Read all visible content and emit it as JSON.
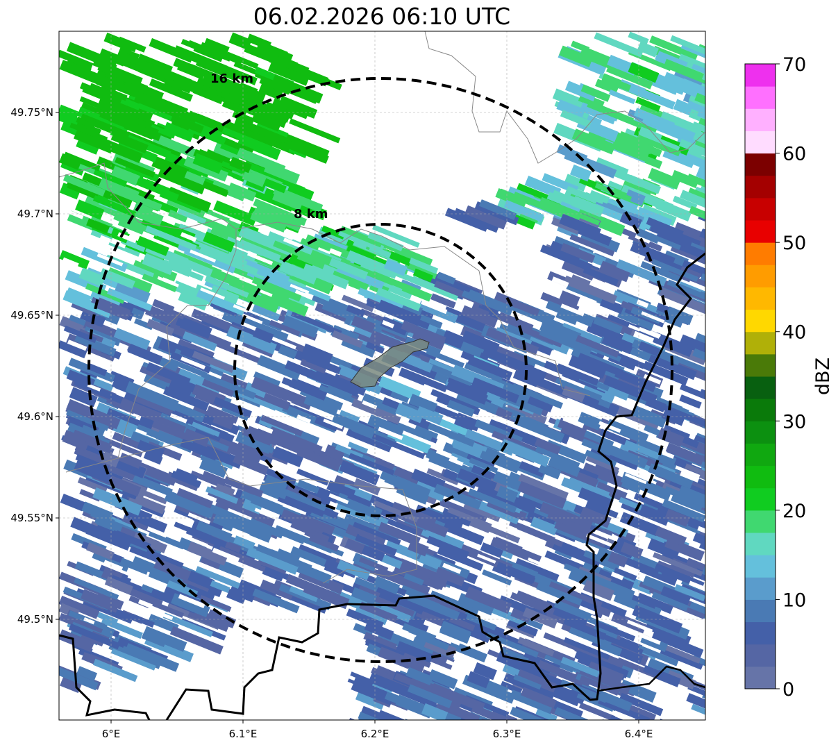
{
  "title": "06.02.2026 06:10 UTC",
  "map": {
    "lon_ticks": [
      "6°E",
      "6.1°E",
      "6.2°E",
      "6.3°E",
      "6.4°E"
    ],
    "lat_ticks": [
      "49.75°N",
      "49.7°N",
      "49.65°N",
      "49.6°N",
      "49.55°N",
      "49.5°N"
    ],
    "range_rings": [
      "16 km",
      "8 km"
    ]
  },
  "colorbar": {
    "label": "dBZ",
    "ticks": [
      "0",
      "10",
      "20",
      "30",
      "40",
      "50",
      "60",
      "70"
    ],
    "range": [
      0,
      70
    ],
    "step": 2.5,
    "colors": [
      "#6674a8",
      "#5566a4",
      "#4460a8",
      "#4a7ab4",
      "#5a9ccc",
      "#64c0dc",
      "#60d8c0",
      "#40d870",
      "#10cc20",
      "#10bc10",
      "#10a810",
      "#0c9010",
      "#0a7a0a",
      "#086010",
      "#4a7a08",
      "#b0b008",
      "#ffd800",
      "#ffb800",
      "#ff9c00",
      "#ff7c00",
      "#e80000",
      "#c80000",
      "#a40000",
      "#7c0000",
      "#ffdcff",
      "#ffb0ff",
      "#ff70ff",
      "#ee30ee"
    ]
  }
}
